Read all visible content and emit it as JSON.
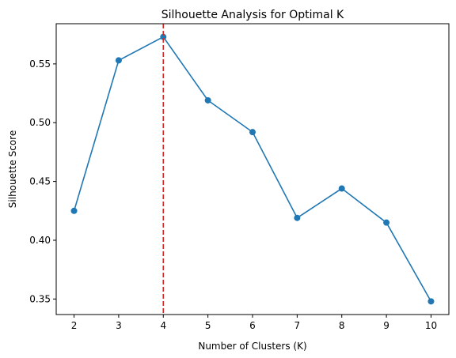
{
  "chart_data": {
    "type": "line",
    "title": "Silhouette Analysis for Optimal K",
    "xlabel": "Number of Clusters (K)",
    "ylabel": "Silhouette Score",
    "x": [
      2,
      3,
      4,
      5,
      6,
      7,
      8,
      9,
      10
    ],
    "series": [
      {
        "values": [
          0.425,
          0.553,
          0.573,
          0.519,
          0.492,
          0.419,
          0.444,
          0.415,
          0.348
        ],
        "color": "#1f77b4"
      }
    ],
    "xticks": [
      "2",
      "3",
      "4",
      "5",
      "6",
      "7",
      "8",
      "9",
      "10"
    ],
    "yticks": [
      "0.35",
      "0.40",
      "0.45",
      "0.50",
      "0.55"
    ],
    "xlim": [
      1.6,
      10.4
    ],
    "ylim": [
      0.3368,
      0.5842
    ],
    "grid": false,
    "reference_line": {
      "x": 4,
      "color": "#d62728",
      "style": "dashed"
    }
  }
}
